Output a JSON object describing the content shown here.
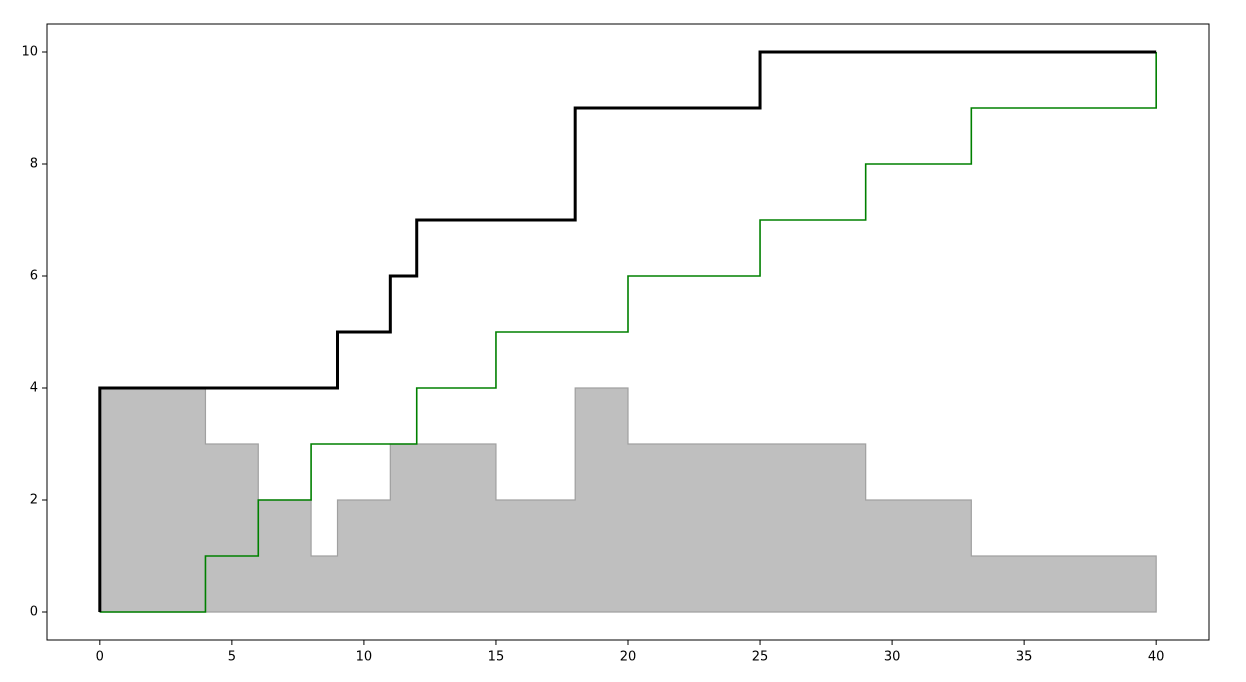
{
  "chart_data": {
    "type": "line",
    "drawstyle": "steps-post",
    "xlim": [
      -2,
      42
    ],
    "ylim": [
      -0.5,
      10.5
    ],
    "xticks": [
      0,
      5,
      10,
      15,
      20,
      25,
      30,
      35,
      40
    ],
    "yticks": [
      0,
      2,
      4,
      6,
      8,
      10
    ],
    "grid": false,
    "series": [
      {
        "x": [
          0,
          4,
          6,
          8,
          9,
          11,
          15,
          18,
          20,
          29,
          33,
          40
        ],
        "values": [
          4,
          3,
          2,
          1,
          2,
          3,
          2,
          4,
          3,
          2,
          1,
          1
        ],
        "fill": true,
        "color": "#a0a0a0",
        "fill_color": "#bfbfbf",
        "linewidth": 1.2
      },
      {
        "x": [
          0,
          4,
          6,
          8,
          12,
          15,
          20,
          25,
          29,
          33,
          40,
          40
        ],
        "values": [
          0,
          1,
          2,
          3,
          4,
          5,
          6,
          7,
          8,
          9,
          9,
          10
        ],
        "fill": false,
        "color": "#008000",
        "linewidth": 1.6
      },
      {
        "x": [
          0,
          0,
          9,
          11,
          12,
          18,
          25,
          40
        ],
        "values": [
          0,
          4,
          5,
          6,
          7,
          9,
          10,
          10
        ],
        "fill": false,
        "color": "#000000",
        "linewidth": 3
      }
    ]
  }
}
